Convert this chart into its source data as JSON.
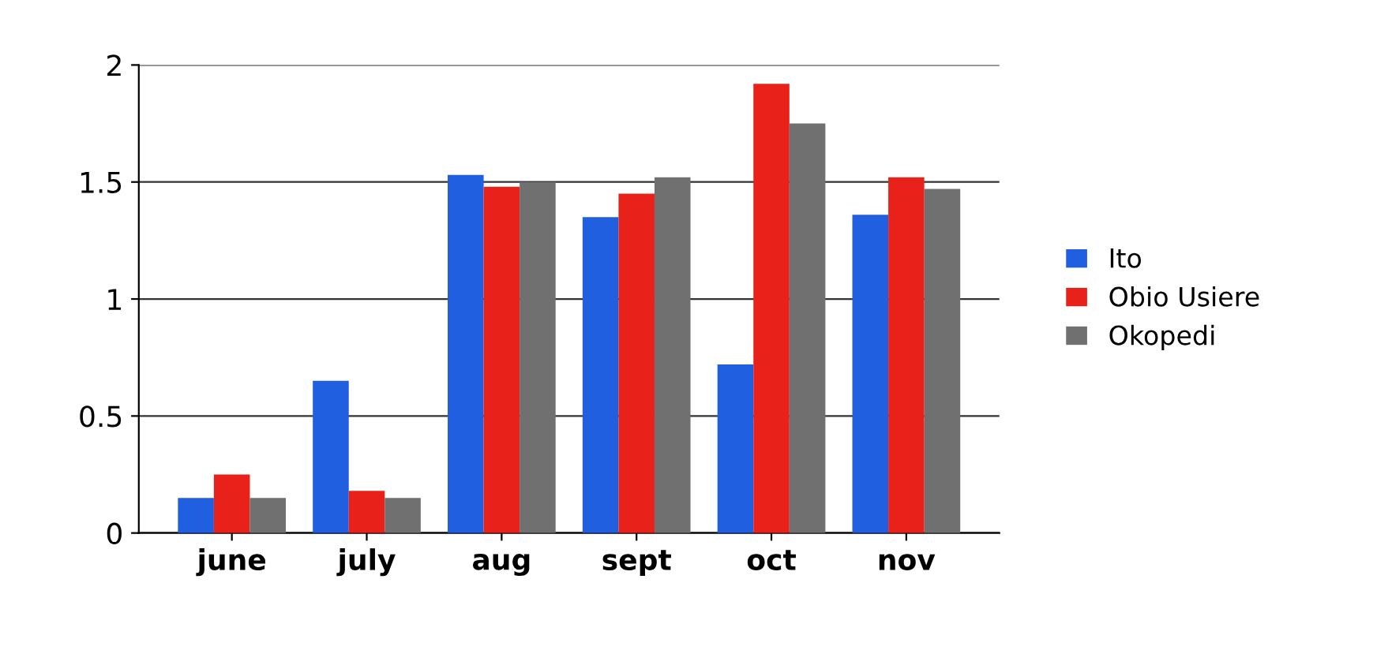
{
  "chart_data": {
    "type": "bar",
    "categories": [
      "june",
      "july",
      "aug",
      "sept",
      "oct",
      "nov"
    ],
    "series": [
      {
        "name": "Ito",
        "color": "#1f5fe0",
        "values": [
          0.15,
          0.65,
          1.53,
          1.35,
          0.72,
          1.36
        ]
      },
      {
        "name": "Obio Usiere",
        "color": "#e8221a",
        "values": [
          0.25,
          0.18,
          1.48,
          1.45,
          1.92,
          1.52
        ]
      },
      {
        "name": "Okopedi",
        "color": "#707070",
        "values": [
          0.15,
          0.15,
          1.5,
          1.52,
          1.75,
          1.47
        ]
      }
    ],
    "ylim": [
      0,
      2
    ],
    "yticks": [
      0,
      0.5,
      1,
      1.5,
      2
    ],
    "grid": "y",
    "legend": "right"
  }
}
